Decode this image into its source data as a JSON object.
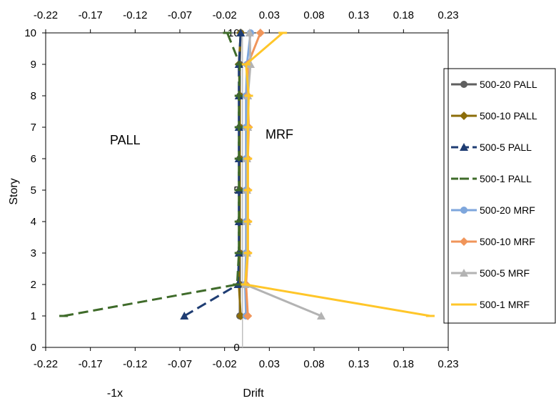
{
  "chart_data": {
    "type": "line",
    "orientation": "drift-vs-story",
    "xlabel": "Drift",
    "ylabel": "Story",
    "x_left_note": "-1x",
    "region_labels": {
      "left": "PALL",
      "right": "MRF"
    },
    "xlim": [
      -0.22,
      0.23
    ],
    "ylim": [
      0,
      10
    ],
    "x_ticks": [
      "-0.22",
      "-0.17",
      "-0.12",
      "-0.07",
      "-0.02",
      "0.03",
      "0.08",
      "0.13",
      "0.18",
      "0.23"
    ],
    "x_tick_values": [
      -0.22,
      -0.17,
      -0.12,
      -0.07,
      -0.02,
      0.03,
      0.08,
      0.13,
      0.18,
      0.23
    ],
    "y_ticks": [
      "0",
      "1",
      "2",
      "3",
      "4",
      "5",
      "6",
      "7",
      "8",
      "9",
      "10"
    ],
    "y_tick_values": [
      0,
      1,
      2,
      3,
      4,
      5,
      6,
      7,
      8,
      9,
      10
    ],
    "center_axis_labels": [
      "0",
      "5",
      "10"
    ],
    "center_axis_values": [
      0,
      5,
      10
    ],
    "grid": false,
    "legend_position": "right",
    "series": [
      {
        "name": "500-20 PALL",
        "color": "#5f5f5f",
        "dash": "solid",
        "marker": "circle",
        "points": [
          [
            -0.003,
            1
          ],
          [
            -0.003,
            2
          ],
          [
            -0.003,
            3
          ],
          [
            -0.003,
            4
          ],
          [
            -0.003,
            5
          ],
          [
            -0.003,
            6
          ],
          [
            -0.003,
            7
          ],
          [
            -0.003,
            8
          ],
          [
            -0.003,
            9
          ],
          [
            -0.002,
            10
          ]
        ]
      },
      {
        "name": "500-10 PALL",
        "color": "#8c6d0a",
        "dash": "solid",
        "marker": "diamond",
        "points": [
          [
            -0.002,
            1
          ],
          [
            -0.004,
            2
          ],
          [
            -0.003,
            3
          ],
          [
            -0.003,
            4
          ],
          [
            -0.003,
            5
          ],
          [
            -0.003,
            6
          ],
          [
            -0.003,
            7
          ],
          [
            -0.003,
            8
          ],
          [
            -0.004,
            9
          ],
          [
            -0.002,
            10
          ]
        ]
      },
      {
        "name": "500-5 PALL",
        "color": "#1f3d73",
        "dash": "dashed",
        "marker": "triangle",
        "points": [
          [
            -0.065,
            1
          ],
          [
            -0.005,
            2
          ],
          [
            -0.004,
            3
          ],
          [
            -0.004,
            4
          ],
          [
            -0.004,
            5
          ],
          [
            -0.004,
            6
          ],
          [
            -0.004,
            7
          ],
          [
            -0.004,
            8
          ],
          [
            -0.004,
            9
          ],
          [
            -0.002,
            10
          ]
        ]
      },
      {
        "name": "500-1 PALL",
        "color": "#3f6b2a",
        "dash": "dashed",
        "marker": "dash",
        "points": [
          [
            -0.2,
            1
          ],
          [
            -0.006,
            2
          ],
          [
            -0.004,
            3
          ],
          [
            -0.004,
            4
          ],
          [
            -0.004,
            5
          ],
          [
            -0.004,
            6
          ],
          [
            -0.004,
            7
          ],
          [
            -0.004,
            8
          ],
          [
            -0.003,
            9
          ],
          [
            -0.017,
            10
          ]
        ]
      },
      {
        "name": "500-20 MRF",
        "color": "#7ea6dc",
        "dash": "solid",
        "marker": "circle",
        "points": [
          [
            0.004,
            1
          ],
          [
            0.003,
            2
          ],
          [
            0.004,
            3
          ],
          [
            0.004,
            4
          ],
          [
            0.004,
            5
          ],
          [
            0.004,
            6
          ],
          [
            0.004,
            7
          ],
          [
            0.004,
            8
          ],
          [
            0.005,
            9
          ],
          [
            0.009,
            10
          ]
        ]
      },
      {
        "name": "500-10 MRF",
        "color": "#f0955a",
        "dash": "solid",
        "marker": "diamond",
        "points": [
          [
            0.006,
            1
          ],
          [
            0.004,
            2
          ],
          [
            0.006,
            3
          ],
          [
            0.006,
            4
          ],
          [
            0.006,
            5
          ],
          [
            0.006,
            6
          ],
          [
            0.007,
            7
          ],
          [
            0.006,
            8
          ],
          [
            0.006,
            9
          ],
          [
            0.02,
            10
          ]
        ]
      },
      {
        "name": "500-5 MRF",
        "color": "#b3b3b3",
        "dash": "solid",
        "marker": "triangle",
        "points": [
          [
            0.088,
            1
          ],
          [
            0.003,
            2
          ],
          [
            0.005,
            3
          ],
          [
            0.005,
            4
          ],
          [
            0.005,
            5
          ],
          [
            0.005,
            6
          ],
          [
            0.006,
            7
          ],
          [
            0.006,
            8
          ],
          [
            0.009,
            9
          ],
          [
            0.008,
            10
          ]
        ]
      },
      {
        "name": "500-1 MRF",
        "color": "#ffc629",
        "dash": "solid",
        "marker": "dash",
        "points": [
          [
            0.21,
            1
          ],
          [
            0.003,
            2
          ],
          [
            0.006,
            3
          ],
          [
            0.006,
            4
          ],
          [
            0.006,
            5
          ],
          [
            0.006,
            6
          ],
          [
            0.006,
            7
          ],
          [
            0.007,
            8
          ],
          [
            0.004,
            9
          ],
          [
            0.045,
            10
          ]
        ]
      }
    ]
  }
}
